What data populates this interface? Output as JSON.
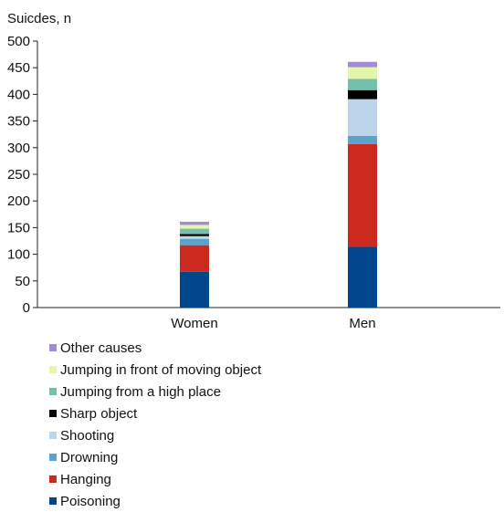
{
  "chart_data": {
    "type": "bar",
    "stacked": true,
    "title": "",
    "ylabel": "Suicdes, n",
    "xlabel": "",
    "ylim": [
      0,
      500
    ],
    "yticks": [
      0,
      50,
      100,
      150,
      200,
      250,
      300,
      350,
      400,
      450,
      500
    ],
    "categories": [
      "Women",
      "Men"
    ],
    "series": [
      {
        "name": "Poisoning",
        "color": "#00468b",
        "values": [
          67,
          114
        ]
      },
      {
        "name": "Hanging",
        "color": "#cc2a1f",
        "values": [
          50,
          193
        ]
      },
      {
        "name": "Drowning",
        "color": "#5ba3cc",
        "values": [
          12,
          15
        ]
      },
      {
        "name": "Shooting",
        "color": "#bcd5ea",
        "values": [
          5,
          69
        ]
      },
      {
        "name": "Sharp object",
        "color": "#000000",
        "values": [
          4,
          17
        ]
      },
      {
        "name": "Jumping from a high place",
        "color": "#74bfac",
        "values": [
          10,
          21
        ]
      },
      {
        "name": "Jumping in front of moving object",
        "color": "#e6f5a8",
        "values": [
          7,
          22
        ]
      },
      {
        "name": "Other causes",
        "color": "#a48cd4",
        "values": [
          6,
          10
        ]
      }
    ],
    "legend_position": "bottom-left",
    "grid": false
  }
}
